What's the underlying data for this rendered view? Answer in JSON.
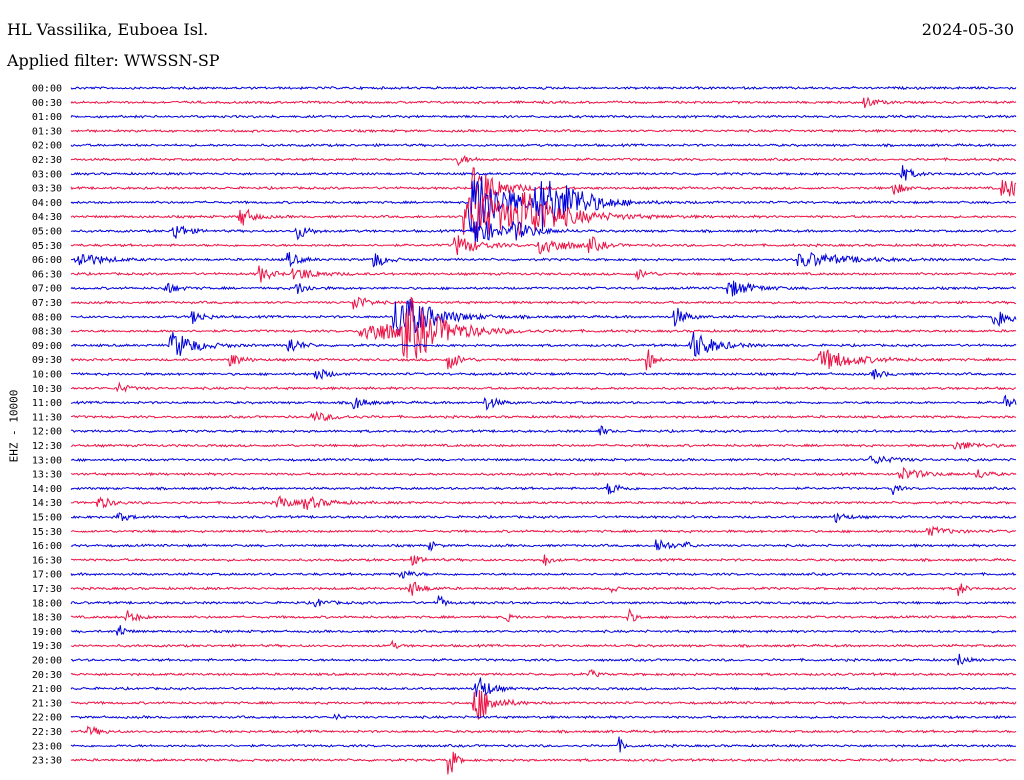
{
  "header": {
    "station": "HL Vassilika, Euboea Isl.",
    "filter": "Applied filter: WWSSN-SP",
    "date": "2024-05-30"
  },
  "colors": {
    "trace_a": "#0000dd",
    "trace_b": "#ee1144"
  },
  "chart_data": {
    "type": "line",
    "title": "HL Vassilika, Euboea Isl.",
    "subtitle": "Applied filter: WWSSN-SP",
    "ylabel": "EHZ - 10000",
    "xlabel": "",
    "grid": false,
    "series": [
      {
        "time": "00:00",
        "events": []
      },
      {
        "time": "00:30",
        "events": [
          [
            0.84,
            6,
            0.01
          ]
        ]
      },
      {
        "time": "01:00",
        "events": []
      },
      {
        "time": "01:30",
        "events": []
      },
      {
        "time": "02:00",
        "events": []
      },
      {
        "time": "02:30",
        "events": [
          [
            0.41,
            5,
            0.01
          ]
        ]
      },
      {
        "time": "03:00",
        "events": [
          [
            0.88,
            8,
            0.01
          ]
        ]
      },
      {
        "time": "03:30",
        "events": [
          [
            0.43,
            25,
            0.02
          ],
          [
            0.87,
            7,
            0.01
          ],
          [
            0.99,
            10,
            0.02
          ]
        ]
      },
      {
        "time": "04:00",
        "events": [
          [
            0.43,
            35,
            0.03
          ],
          [
            0.5,
            25,
            0.03
          ],
          [
            0.53,
            8,
            0.02
          ]
        ]
      },
      {
        "time": "04:30",
        "events": [
          [
            0.18,
            12,
            0.01
          ],
          [
            0.43,
            25,
            0.05
          ],
          [
            0.48,
            20,
            0.03
          ]
        ]
      },
      {
        "time": "05:00",
        "events": [
          [
            0.11,
            10,
            0.01
          ],
          [
            0.24,
            8,
            0.01
          ],
          [
            0.43,
            15,
            0.02
          ],
          [
            0.47,
            8,
            0.02
          ]
        ]
      },
      {
        "time": "05:30",
        "events": [
          [
            0.41,
            10,
            0.02
          ],
          [
            0.5,
            10,
            0.02
          ],
          [
            0.55,
            8,
            0.01
          ]
        ]
      },
      {
        "time": "06:00",
        "events": [
          [
            0.01,
            8,
            0.02
          ],
          [
            0.23,
            8,
            0.01
          ],
          [
            0.32,
            10,
            0.01
          ],
          [
            0.78,
            7,
            0.04
          ]
        ]
      },
      {
        "time": "06:30",
        "events": [
          [
            0.2,
            9,
            0.01
          ],
          [
            0.24,
            6,
            0.02
          ],
          [
            0.6,
            5,
            0.01
          ]
        ]
      },
      {
        "time": "07:00",
        "events": [
          [
            0.1,
            7,
            0.01
          ],
          [
            0.24,
            6,
            0.01
          ],
          [
            0.7,
            8,
            0.02
          ]
        ]
      },
      {
        "time": "07:30",
        "events": [
          [
            0.3,
            10,
            0.01
          ]
        ]
      },
      {
        "time": "08:00",
        "events": [
          [
            0.35,
            25,
            0.03
          ],
          [
            0.13,
            7,
            0.01
          ],
          [
            0.64,
            10,
            0.01
          ],
          [
            0.98,
            10,
            0.02
          ]
        ]
      },
      {
        "time": "08:30",
        "events": [
          [
            0.36,
            28,
            0.03
          ],
          [
            0.32,
            10,
            0.05
          ]
        ]
      },
      {
        "time": "09:00",
        "events": [
          [
            0.11,
            14,
            0.02
          ],
          [
            0.23,
            10,
            0.01
          ],
          [
            0.66,
            14,
            0.02
          ]
        ]
      },
      {
        "time": "09:30",
        "events": [
          [
            0.17,
            7,
            0.01
          ],
          [
            0.4,
            10,
            0.01
          ],
          [
            0.61,
            14,
            0.005
          ],
          [
            0.8,
            10,
            0.03
          ]
        ]
      },
      {
        "time": "10:00",
        "events": [
          [
            0.26,
            7,
            0.01
          ],
          [
            0.85,
            5,
            0.01
          ]
        ]
      },
      {
        "time": "10:30",
        "events": [
          [
            0.05,
            5,
            0.01
          ]
        ]
      },
      {
        "time": "11:00",
        "events": [
          [
            0.3,
            7,
            0.01
          ],
          [
            0.44,
            7,
            0.01
          ],
          [
            0.99,
            7,
            0.01
          ]
        ]
      },
      {
        "time": "11:30",
        "events": [
          [
            0.26,
            4,
            0.02
          ]
        ]
      },
      {
        "time": "12:00",
        "events": [
          [
            0.56,
            6,
            0.005
          ]
        ]
      },
      {
        "time": "12:30",
        "events": [
          [
            0.94,
            4,
            0.02
          ]
        ]
      },
      {
        "time": "13:00",
        "events": [
          [
            0.85,
            4,
            0.02
          ]
        ]
      },
      {
        "time": "13:30",
        "events": [
          [
            0.88,
            6,
            0.02
          ],
          [
            0.96,
            5,
            0.01
          ]
        ]
      },
      {
        "time": "14:00",
        "events": [
          [
            0.57,
            7,
            0.01
          ],
          [
            0.87,
            6,
            0.005
          ]
        ]
      },
      {
        "time": "14:30",
        "events": [
          [
            0.03,
            7,
            0.01
          ],
          [
            0.22,
            8,
            0.01
          ],
          [
            0.25,
            6,
            0.02
          ]
        ]
      },
      {
        "time": "15:00",
        "events": [
          [
            0.05,
            5,
            0.01
          ],
          [
            0.81,
            5,
            0.01
          ]
        ]
      },
      {
        "time": "15:30",
        "events": [
          [
            0.91,
            4,
            0.02
          ]
        ]
      },
      {
        "time": "16:00",
        "events": [
          [
            0.38,
            5,
            0.005
          ],
          [
            0.62,
            9,
            0.01
          ],
          [
            0.65,
            5,
            0.005
          ]
        ]
      },
      {
        "time": "16:30",
        "events": [
          [
            0.5,
            9,
            0.005
          ],
          [
            0.36,
            5,
            0.01
          ]
        ]
      },
      {
        "time": "17:00",
        "events": [
          [
            0.35,
            5,
            0.01
          ]
        ]
      },
      {
        "time": "17:30",
        "events": [
          [
            0.36,
            9,
            0.01
          ],
          [
            0.57,
            5,
            0.005
          ],
          [
            0.94,
            9,
            0.005
          ]
        ]
      },
      {
        "time": "18:00",
        "events": [
          [
            0.39,
            8,
            0.005
          ],
          [
            0.26,
            4,
            0.01
          ]
        ]
      },
      {
        "time": "18:30",
        "events": [
          [
            0.06,
            6,
            0.01
          ],
          [
            0.46,
            6,
            0.005
          ],
          [
            0.59,
            9,
            0.005
          ]
        ]
      },
      {
        "time": "19:00",
        "events": [
          [
            0.05,
            10,
            0.005
          ]
        ]
      },
      {
        "time": "19:30",
        "events": [
          [
            0.34,
            4,
            0.005
          ]
        ]
      },
      {
        "time": "20:00",
        "events": [
          [
            0.94,
            9,
            0.005
          ]
        ]
      },
      {
        "time": "20:30",
        "events": [
          [
            0.55,
            5,
            0.005
          ]
        ]
      },
      {
        "time": "21:00",
        "events": [
          [
            0.43,
            18,
            0.01
          ]
        ]
      },
      {
        "time": "21:30",
        "events": [
          [
            0.43,
            20,
            0.015
          ]
        ]
      },
      {
        "time": "22:00",
        "events": [
          [
            0.28,
            4,
            0.005
          ]
        ]
      },
      {
        "time": "22:30",
        "events": [
          [
            0.02,
            5,
            0.01
          ]
        ]
      },
      {
        "time": "23:00",
        "events": [
          [
            0.58,
            8,
            0.005
          ]
        ]
      },
      {
        "time": "23:30",
        "events": [
          [
            0.4,
            22,
            0.005
          ]
        ]
      }
    ]
  }
}
